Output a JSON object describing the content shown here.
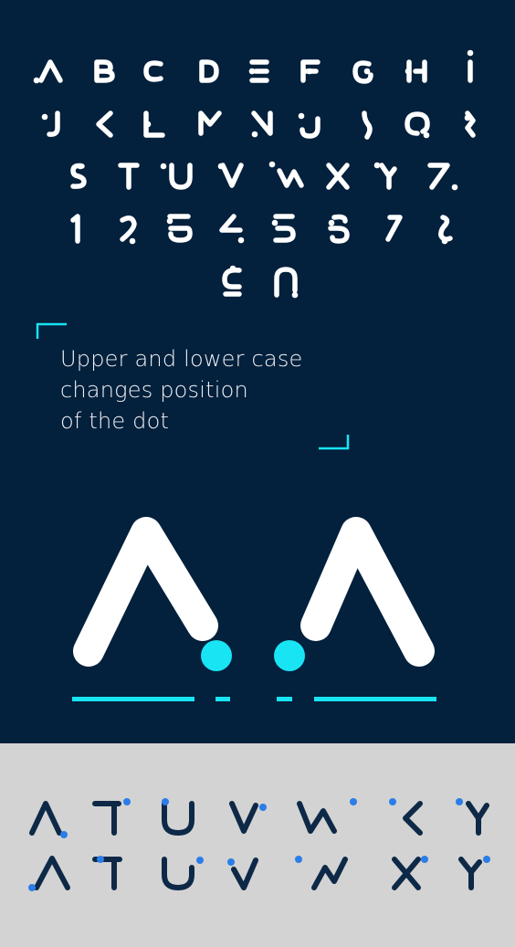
{
  "title_alphabet": "ABCDEFGHIJKLMNOPQRSTUVWXYZ1234567890",
  "caption_lines": [
    "Upper and lower case",
    "changes position",
    "of the dot"
  ],
  "demo_letters": [
    "A",
    "A"
  ],
  "comparison_letters": [
    "A",
    "T",
    "U",
    "V",
    "W",
    "X",
    "Y"
  ],
  "colors": {
    "dark_background": "#03203c",
    "light_background": "#d3d3d3",
    "glyph_white": "#ffffff",
    "glyph_dark": "#0d2947",
    "accent_cyan": "#19e4f4",
    "accent_blue": "#2b7de9"
  }
}
